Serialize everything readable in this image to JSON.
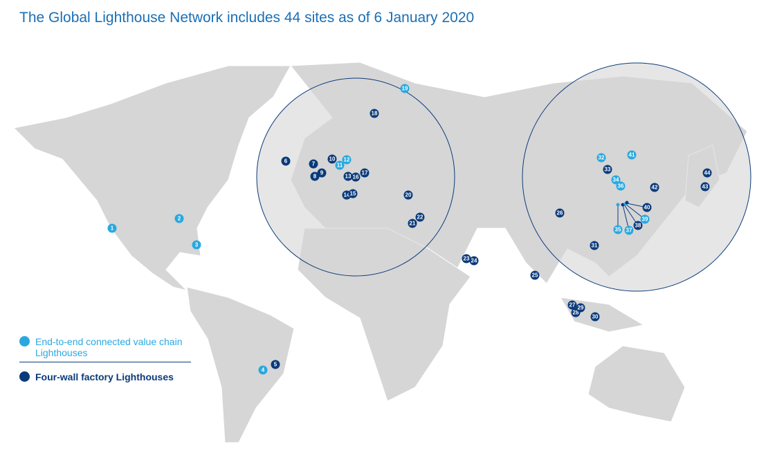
{
  "title": "The Global Lighthouse Network includes 44 sites as of 6 January 2020",
  "legend": [
    {
      "label": "End-to-end connected value chain Lighthouses",
      "color": "#29a8e0",
      "sites": [
        "1",
        "2",
        "3",
        "4",
        "11",
        "12",
        "19",
        "32",
        "34",
        "35",
        "36",
        "37",
        "39",
        "41"
      ]
    },
    {
      "label": "Four-wall factory Lighthouses",
      "color": "#0a3a7a",
      "sites": [
        "5",
        "6",
        "7",
        "8",
        "9",
        "10",
        "13",
        "14",
        "15",
        "16",
        "17",
        "18",
        "20",
        "21",
        "22",
        "23",
        "24",
        "25",
        "26",
        "27",
        "28",
        "29",
        "30",
        "31",
        "33",
        "38",
        "40",
        "42",
        "43",
        "44"
      ]
    }
  ]
}
